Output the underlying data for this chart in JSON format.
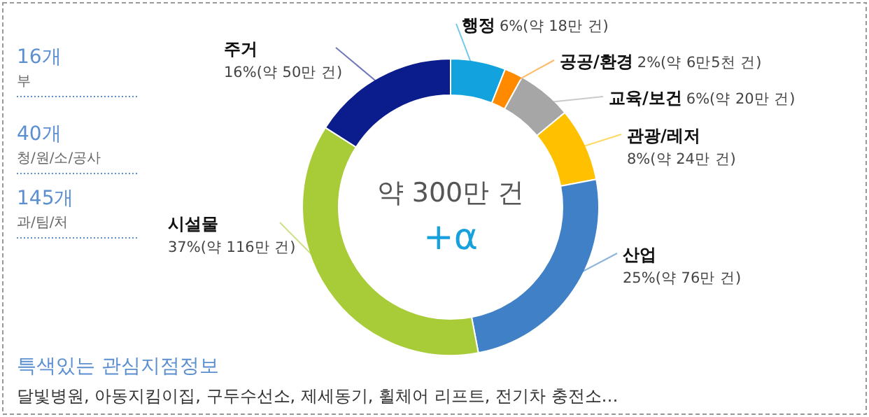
{
  "chart_data": {
    "type": "donut",
    "categories": [
      "행정",
      "공공/환경",
      "교육/보건",
      "관광/레저",
      "산업",
      "시설물",
      "주거"
    ],
    "values": [
      6,
      2,
      6,
      8,
      25,
      37,
      16
    ],
    "colors": [
      "#12a3de",
      "#ff8a00",
      "#a6a6a6",
      "#ffc000",
      "#4080c6",
      "#a8cb38",
      "#0b1c8c"
    ],
    "value_labels": [
      "6%(약 18만 건)",
      "2%(약 6만5천 건)",
      "6%(약 20만 건)",
      "8%(약 24만 건)",
      "25%(약 76만 건)",
      "37%(약 116만 건)",
      "16%(약 50만 건)"
    ],
    "annotations": [
      "약 300만 건",
      "+α",
      "16개",
      "부",
      "40개",
      "청/원/소/공사",
      "145개",
      "과/팀/처",
      "특색있는 관심지점정보",
      "달빛병원, 아동지킴이집, 구두수선소, 제세동기, 휠체어 리프트, 전기차 충전소…"
    ]
  }
}
